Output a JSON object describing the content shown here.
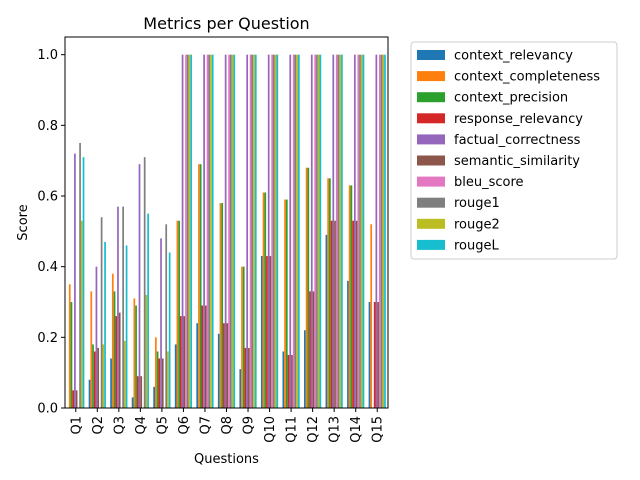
{
  "chart_data": {
    "type": "bar",
    "title": "Metrics per Question",
    "xlabel": "Questions",
    "ylabel": "Score",
    "ylim": [
      0,
      1.05
    ],
    "yticks": [
      "0.0",
      "0.2",
      "0.4",
      "0.6",
      "0.8",
      "1.0"
    ],
    "legend_position": "outside-right",
    "categories": [
      "Q1",
      "Q2",
      "Q3",
      "Q4",
      "Q5",
      "Q6",
      "Q7",
      "Q8",
      "Q9",
      "Q10",
      "Q11",
      "Q12",
      "Q13",
      "Q14",
      "Q15"
    ],
    "series": [
      {
        "name": "context_relevancy",
        "color": "#1f77b4",
        "values": [
          0.0,
          0.08,
          0.14,
          0.03,
          0.06,
          0.18,
          0.24,
          0.21,
          0.11,
          0.43,
          0.16,
          0.22,
          0.49,
          0.36,
          0.3
        ]
      },
      {
        "name": "context_completeness",
        "color": "#ff7f0e",
        "values": [
          0.35,
          0.33,
          0.38,
          0.31,
          0.2,
          0.53,
          0.69,
          0.58,
          0.4,
          0.61,
          0.59,
          0.68,
          0.65,
          0.63,
          0.52
        ]
      },
      {
        "name": "context_precision",
        "color": "#2ca02c",
        "values": [
          0.3,
          0.18,
          0.33,
          0.29,
          0.16,
          0.53,
          0.69,
          0.58,
          0.4,
          0.61,
          0.59,
          0.68,
          0.65,
          0.63,
          0.0
        ]
      },
      {
        "name": "response_relevancy",
        "color": "#d62728",
        "values": [
          0.05,
          0.16,
          0.26,
          0.09,
          0.14,
          0.26,
          0.29,
          0.24,
          0.17,
          0.43,
          0.15,
          0.33,
          0.53,
          0.53,
          0.3
        ]
      },
      {
        "name": "factual_correctness",
        "color": "#9467bd",
        "values": [
          0.72,
          0.4,
          0.57,
          0.69,
          0.48,
          1.0,
          1.0,
          1.0,
          1.0,
          1.0,
          1.0,
          1.0,
          1.0,
          1.0,
          1.0
        ]
      },
      {
        "name": "semantic_similarity",
        "color": "#8c564b",
        "values": [
          0.05,
          0.17,
          0.27,
          0.09,
          0.14,
          0.26,
          0.29,
          0.24,
          0.17,
          0.43,
          0.15,
          0.33,
          0.53,
          0.53,
          0.3
        ]
      },
      {
        "name": "bleu_score",
        "color": "#e377c2",
        "values": [
          0.0,
          0.0,
          0.0,
          0.0,
          0.0,
          1.0,
          1.0,
          1.0,
          1.0,
          1.0,
          1.0,
          1.0,
          1.0,
          1.0,
          1.0
        ]
      },
      {
        "name": "rouge1",
        "color": "#7f7f7f",
        "values": [
          0.75,
          0.54,
          0.57,
          0.71,
          0.52,
          1.0,
          1.0,
          1.0,
          1.0,
          1.0,
          1.0,
          1.0,
          1.0,
          1.0,
          1.0
        ]
      },
      {
        "name": "rouge2",
        "color": "#bcbd22",
        "values": [
          0.53,
          0.18,
          0.19,
          0.32,
          0.16,
          1.0,
          1.0,
          1.0,
          1.0,
          1.0,
          1.0,
          1.0,
          1.0,
          1.0,
          1.0
        ]
      },
      {
        "name": "rougeL",
        "color": "#17becf",
        "values": [
          0.71,
          0.47,
          0.46,
          0.55,
          0.44,
          1.0,
          1.0,
          1.0,
          1.0,
          1.0,
          1.0,
          1.0,
          1.0,
          1.0,
          1.0
        ]
      }
    ]
  }
}
